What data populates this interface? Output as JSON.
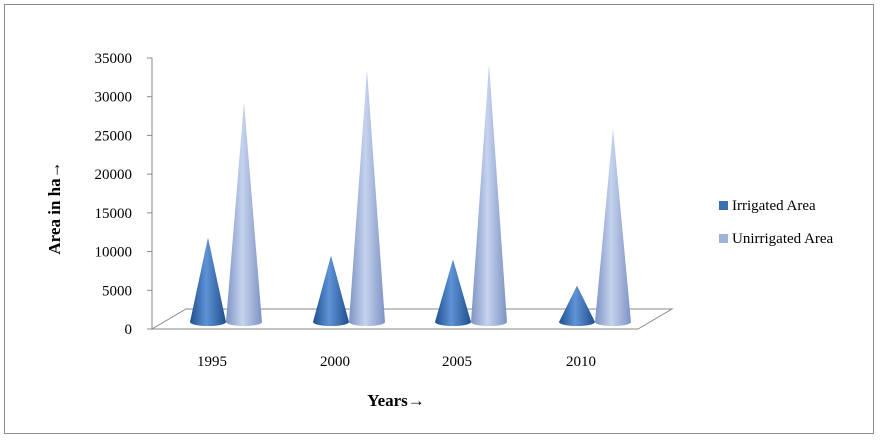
{
  "chart_data": {
    "type": "bar",
    "style": "3d-cone",
    "categories": [
      "1995",
      "2000",
      "2005",
      "2010"
    ],
    "series": [
      {
        "name": "Irrigated Area",
        "values": [
          11800,
          9500,
          9000,
          5600
        ],
        "color": "#3a6fb0"
      },
      {
        "name": "Unirrigated Area",
        "values": [
          29300,
          33500,
          34200,
          25900
        ],
        "color": "#9eb3dc"
      }
    ],
    "xlabel": "Years→",
    "ylabel": "Area in ha→",
    "ylim": [
      0,
      35000
    ],
    "yticks": [
      "0",
      "5000",
      "10000",
      "15000",
      "20000",
      "25000",
      "30000",
      "35000"
    ],
    "grid": false,
    "legend_position": "right"
  }
}
